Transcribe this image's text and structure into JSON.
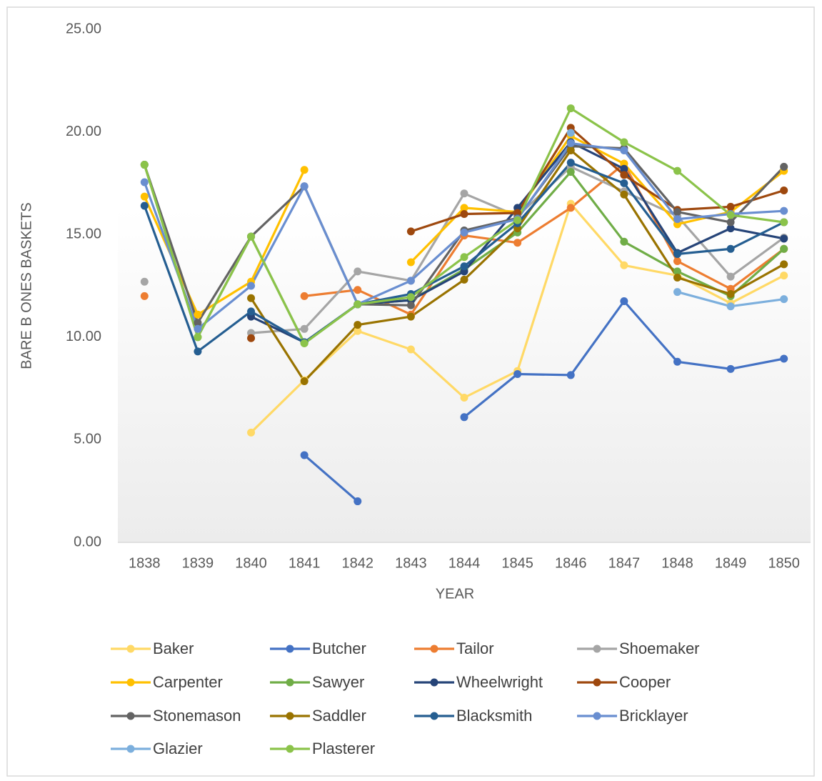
{
  "chart_data": {
    "type": "line",
    "y_label": "BARE B ONES BASKETS",
    "x_label": "YEAR",
    "categories": [
      "1838",
      "1839",
      "1840",
      "1841",
      "1842",
      "1843",
      "1844",
      "1845",
      "1846",
      "1847",
      "1848",
      "1849",
      "1850"
    ],
    "ylim": [
      0,
      25
    ],
    "yticks": [
      {
        "value": 0,
        "label": "0.00"
      },
      {
        "value": 5,
        "label": "5.00"
      },
      {
        "value": 10,
        "label": "10.00"
      },
      {
        "value": 15,
        "label": "15.00"
      },
      {
        "value": 20,
        "label": "20.00"
      },
      {
        "value": 25,
        "label": "25.00"
      }
    ],
    "grid": false,
    "legend": "bottom",
    "series": [
      {
        "name": "Baker",
        "color": "#FFD966",
        "values": [
          null,
          null,
          5.35,
          7.9,
          10.3,
          9.4,
          7.05,
          8.35,
          16.5,
          13.5,
          13.0,
          11.65,
          13.0
        ]
      },
      {
        "name": "Butcher",
        "color": "#4472C4",
        "values": [
          null,
          null,
          null,
          4.25,
          2.0,
          null,
          6.1,
          8.2,
          8.15,
          11.75,
          8.8,
          8.45,
          8.95
        ]
      },
      {
        "name": "Tailor",
        "color": "#ED7D31",
        "values": [
          12.0,
          null,
          null,
          12.0,
          12.3,
          11.1,
          14.95,
          14.6,
          16.3,
          18.45,
          13.7,
          12.35,
          14.3
        ]
      },
      {
        "name": "Shoemaker",
        "color": "#A5A5A5",
        "values": [
          12.7,
          null,
          10.2,
          10.4,
          13.2,
          12.75,
          17.0,
          15.9,
          18.3,
          17.1,
          15.9,
          12.95,
          14.85
        ]
      },
      {
        "name": "Carpenter",
        "color": "#FFC000",
        "values": [
          16.85,
          11.1,
          12.7,
          18.15,
          null,
          13.65,
          16.3,
          16.1,
          19.8,
          18.45,
          15.5,
          16.1,
          18.1
        ]
      },
      {
        "name": "Sawyer",
        "color": "#70AD47",
        "values": [
          18.4,
          10.0,
          14.9,
          9.7,
          11.6,
          11.8,
          13.3,
          15.1,
          18.05,
          14.65,
          13.2,
          12.0,
          14.3
        ]
      },
      {
        "name": "Wheelwright",
        "color": "#264478",
        "values": [
          null,
          null,
          11.0,
          9.75,
          11.6,
          11.8,
          13.2,
          16.3,
          19.5,
          18.2,
          14.1,
          15.3,
          14.8
        ]
      },
      {
        "name": "Cooper",
        "color": "#9E480E",
        "values": [
          null,
          null,
          9.95,
          null,
          null,
          15.15,
          16.0,
          16.05,
          20.2,
          17.9,
          16.2,
          16.35,
          17.15
        ]
      },
      {
        "name": "Stonemason",
        "color": "#636363",
        "values": [
          18.4,
          10.7,
          14.9,
          17.35,
          11.6,
          11.55,
          15.2,
          15.8,
          19.3,
          19.2,
          16.1,
          15.6,
          18.3
        ]
      },
      {
        "name": "Saddler",
        "color": "#997300",
        "values": [
          null,
          null,
          11.9,
          7.85,
          10.6,
          11.0,
          12.8,
          15.3,
          19.1,
          16.95,
          12.9,
          12.1,
          13.55
        ]
      },
      {
        "name": "Blacksmith",
        "color": "#255E91",
        "values": [
          16.4,
          9.3,
          11.25,
          9.75,
          11.6,
          12.1,
          13.45,
          15.55,
          18.5,
          17.5,
          14.05,
          14.3,
          15.6
        ]
      },
      {
        "name": "Bricklayer",
        "color": "#698ED0",
        "values": [
          17.55,
          10.4,
          12.5,
          17.35,
          11.6,
          12.75,
          15.1,
          15.75,
          19.45,
          19.1,
          15.75,
          16.0,
          16.15
        ]
      },
      {
        "name": "Glazier",
        "color": "#7CAFDD",
        "values": [
          null,
          null,
          null,
          null,
          null,
          null,
          null,
          null,
          19.95,
          null,
          12.2,
          11.5,
          11.85
        ]
      },
      {
        "name": "Plasterer",
        "color": "#8BC34A",
        "values": [
          18.4,
          10.0,
          14.9,
          9.7,
          11.6,
          11.95,
          13.9,
          15.7,
          21.15,
          19.5,
          18.1,
          15.95,
          15.6
        ]
      }
    ]
  }
}
